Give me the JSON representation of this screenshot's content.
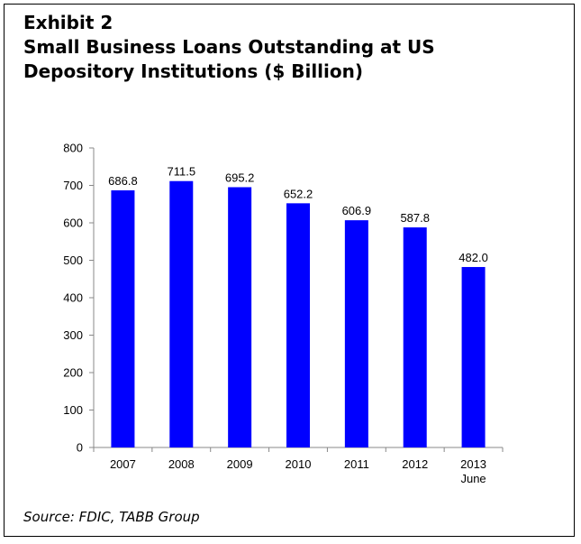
{
  "exhibit_label": "Exhibit 2",
  "title_line1": "Small Business Loans Outstanding at US",
  "title_line2": "Depository Institutions ($ Billion)",
  "source": "Source: FDIC, TABB Group",
  "colors": {
    "bar": "#0000ff",
    "axis": "#888888",
    "text": "#000000"
  },
  "chart_data": {
    "type": "bar",
    "categories": [
      "2007",
      "2008",
      "2009",
      "2010",
      "2011",
      "2012",
      "2013\nJune"
    ],
    "values": [
      686.8,
      711.5,
      695.2,
      652.2,
      606.9,
      587.8,
      482.0
    ],
    "data_labels": [
      "686.8",
      "711.5",
      "695.2",
      "652.2",
      "606.9",
      "587.8",
      "482.0"
    ],
    "y_ticks": [
      0,
      100,
      200,
      300,
      400,
      500,
      600,
      700,
      800
    ],
    "ylim": [
      0,
      800
    ],
    "grid": false,
    "legend": "none"
  }
}
